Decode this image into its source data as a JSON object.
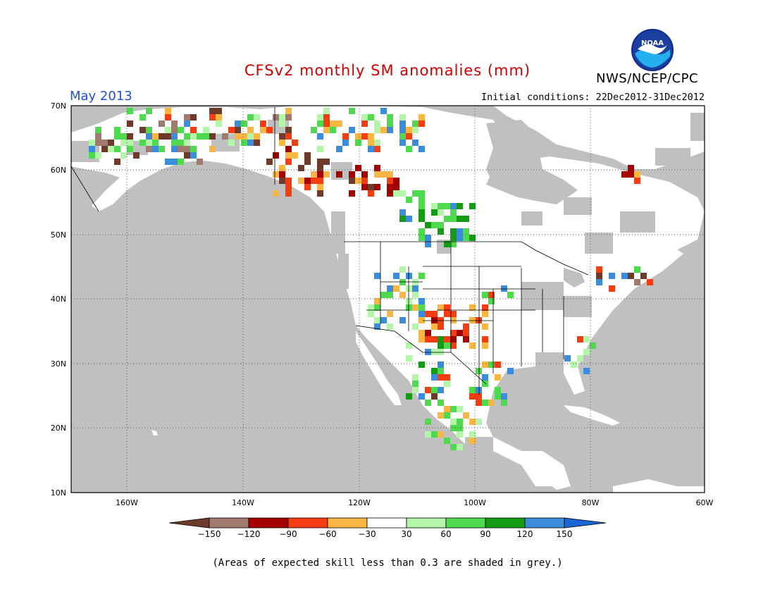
{
  "header": {
    "title": "CFSv2 monthly SM anomalies (mm)",
    "title_color": "#d40000",
    "agency": "NWS/NCEP/CPC",
    "month_label": "May 2013",
    "month_color": "#1f4fd8",
    "initial_conditions": "Initial conditions: 22Dec2012-31Dec2012"
  },
  "logo": {
    "icon": "noaa-logo-icon",
    "text": "NOAA"
  },
  "map": {
    "lat_labels": [
      "70N",
      "60N",
      "50N",
      "40N",
      "30N",
      "20N",
      "10N"
    ],
    "lon_labels": [
      "160W",
      "140W",
      "120W",
      "100W",
      "80W",
      "60W"
    ],
    "land_color": "#ffffff",
    "grey_color": "#c0c0c0"
  },
  "colorbar": {
    "tick_labels": [
      "−150",
      "−120",
      "−90",
      "−60",
      "−30",
      "30",
      "60",
      "90",
      "120",
      "150"
    ],
    "colors": [
      "#6e3a2a",
      "#a07a6e",
      "#a50000",
      "#f53d11",
      "#f9b643",
      "#ffffff",
      "#b3f5a9",
      "#4ed94e",
      "#139c13",
      "#3c8cdc",
      "#1a66d6"
    ]
  },
  "footnote": "(Areas of expected skill less than 0.3 are shaded in grey.)"
}
